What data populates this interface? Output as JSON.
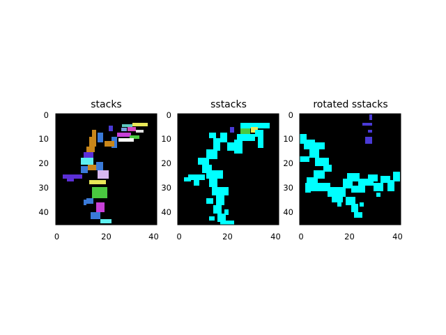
{
  "chart_data": [
    {
      "type": "heatmap",
      "title": "stacks",
      "x_ticks": [
        0,
        20,
        40
      ],
      "y_ticks": [
        0,
        10,
        20,
        30,
        40
      ],
      "xlim": [
        -0.5,
        40.5
      ],
      "ylim": [
        45.5,
        -0.5
      ],
      "background": "#000000",
      "pixels": [
        [
          4,
          25,
          "#5b2fd6"
        ],
        [
          9,
          25,
          "#8a6fe0"
        ],
        [
          4,
          26,
          "#5b2fd6"
        ],
        [
          5,
          26,
          "#5b2fd6"
        ],
        [
          3,
          27,
          "#5b2fd6"
        ],
        [
          4,
          27,
          "#5b2fd6"
        ],
        [
          5,
          27,
          "#5b2fd6"
        ],
        [
          6,
          27,
          "#5b2fd6"
        ],
        [
          7,
          27,
          "#5b2fd6"
        ],
        [
          8,
          27,
          "#5b2fd6"
        ],
        [
          9,
          27,
          "#5b2fd6"
        ],
        [
          10,
          27,
          "#5b2fd6"
        ],
        [
          5,
          28,
          "#5b2fd6"
        ],
        [
          6,
          28,
          "#5b2fd6"
        ],
        [
          7,
          28,
          "#5b2fd6"
        ],
        [
          8,
          28,
          "#5b2fd6"
        ],
        [
          9,
          28,
          "#5b2fd6"
        ],
        [
          2,
          26,
          "#c8861a"
        ],
        [
          3,
          26,
          "#c8861a"
        ],
        [
          1,
          26,
          "#c8861a"
        ],
        [
          5,
          29,
          "#5b2fd6"
        ]
      ]
    },
    {
      "type": "heatmap",
      "title": "sstacks",
      "x_ticks": [
        0,
        20,
        40
      ],
      "y_ticks": [
        0,
        10,
        20,
        30,
        40
      ],
      "xlim": [
        -0.5,
        40.5
      ],
      "ylim": [
        45.5,
        -0.5
      ],
      "background": "#000000",
      "pixels": [
        [
          22,
          5,
          "#4a3ad6"
        ],
        [
          23,
          5,
          "#4a3ad6"
        ],
        [
          22,
          6,
          "#4a3ad6"
        ],
        [
          23,
          6,
          "#4a3ad6"
        ]
      ]
    },
    {
      "type": "heatmap",
      "title": "rotated sstacks",
      "x_ticks": [
        0,
        20,
        40
      ],
      "y_ticks": [
        0,
        10,
        20,
        30,
        40
      ],
      "xlim": [
        -0.5,
        40.5
      ],
      "ylim": [
        45.5,
        -0.5
      ],
      "background": "#000000",
      "pixels": [
        [
          29,
          0,
          "#4a3ad6"
        ],
        [
          29,
          1,
          "#4a3ad6"
        ],
        [
          27,
          4,
          "#4a3ad6"
        ],
        [
          28,
          4,
          "#4a3ad6"
        ],
        [
          29,
          4,
          "#4a3ad6"
        ],
        [
          30,
          4,
          "#4a3ad6"
        ],
        [
          29,
          5,
          "#4a3ad6"
        ],
        [
          28,
          7,
          "#4a3ad6"
        ],
        [
          29,
          7,
          "#4a3ad6"
        ],
        [
          28,
          10,
          "#4a3ad6"
        ],
        [
          29,
          10,
          "#4a3ad6"
        ],
        [
          28,
          11,
          "#4a3ad6"
        ],
        [
          29,
          11,
          "#4a3ad6"
        ]
      ]
    }
  ]
}
